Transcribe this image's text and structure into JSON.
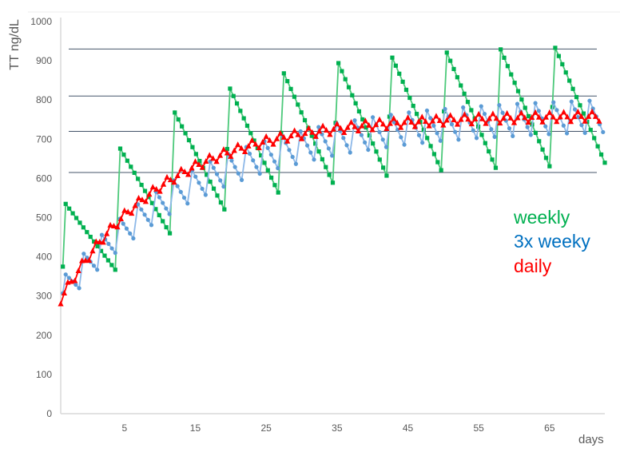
{
  "chart_data": {
    "type": "line",
    "title": "",
    "xlabel": "days",
    "ylabel": "TT ng/dL",
    "xlim": [
      -4,
      72.8
    ],
    "ylim": [
      0,
      1000
    ],
    "x_ticks": [
      "5",
      "15",
      "25",
      "35",
      "45",
      "55",
      "65"
    ],
    "x_tick_values": [
      5,
      15,
      25,
      35,
      45,
      55,
      65
    ],
    "y_ticks": [
      "0",
      "100",
      "200",
      "300",
      "400",
      "500",
      "600",
      "700",
      "800",
      "900",
      "1000"
    ],
    "y_tick_values": [
      0,
      100,
      200,
      300,
      400,
      500,
      600,
      700,
      800,
      900,
      1000
    ],
    "grid": false,
    "reference_lines": [
      930,
      810,
      720,
      615
    ],
    "reference_line_color": "#44546a",
    "legend_placement": "right",
    "series": [
      {
        "name": "weekly",
        "color": "#00b050",
        "line_color": "#4cc97a",
        "marker": "square",
        "points": [
          [
            -3.7,
            375
          ],
          [
            -3.3,
            535
          ],
          [
            3.7,
            367
          ],
          [
            4.4,
            676
          ],
          [
            11.4,
            460
          ],
          [
            12.1,
            768
          ],
          [
            19.1,
            521
          ],
          [
            19.9,
            829
          ],
          [
            26.7,
            564
          ],
          [
            27.5,
            868
          ],
          [
            34.4,
            589
          ],
          [
            35.2,
            894
          ],
          [
            42.0,
            607
          ],
          [
            42.8,
            908
          ],
          [
            49.7,
            621
          ],
          [
            50.5,
            921
          ],
          [
            57.4,
            627
          ],
          [
            58.1,
            929
          ],
          [
            65.0,
            631
          ],
          [
            65.8,
            933
          ],
          [
            72.8,
            640
          ]
        ]
      },
      {
        "name": "3x weeky",
        "color": "#0070c0",
        "line_color": "#8db8e8",
        "marker_color": "#5b9bd5",
        "marker": "circle",
        "points": [
          [
            -3.7,
            307
          ],
          [
            -3.3,
            355
          ],
          [
            -1.4,
            320
          ],
          [
            -0.75,
            408
          ],
          [
            1.15,
            367
          ],
          [
            1.8,
            456
          ],
          [
            3.7,
            410
          ],
          [
            4.35,
            497
          ],
          [
            6.25,
            447
          ],
          [
            6.9,
            534
          ],
          [
            8.8,
            481
          ],
          [
            9.45,
            566
          ],
          [
            11.35,
            509
          ],
          [
            12.0,
            595
          ],
          [
            13.9,
            536
          ],
          [
            14.55,
            620
          ],
          [
            16.45,
            558
          ],
          [
            17.1,
            643
          ],
          [
            19.0,
            579
          ],
          [
            19.65,
            662
          ],
          [
            21.55,
            596
          ],
          [
            22.2,
            680
          ],
          [
            24.1,
            612
          ],
          [
            24.75,
            695
          ],
          [
            26.65,
            626
          ],
          [
            27.3,
            708
          ],
          [
            29.2,
            637
          ],
          [
            29.85,
            720
          ],
          [
            31.75,
            648
          ],
          [
            32.4,
            731
          ],
          [
            34.3,
            658
          ],
          [
            34.95,
            740
          ],
          [
            36.85,
            666
          ],
          [
            37.5,
            748
          ],
          [
            39.4,
            673
          ],
          [
            40.05,
            756
          ],
          [
            41.95,
            680
          ],
          [
            42.6,
            762
          ],
          [
            44.5,
            686
          ],
          [
            45.15,
            768
          ],
          [
            47.05,
            691
          ],
          [
            47.7,
            773
          ],
          [
            49.6,
            696
          ],
          [
            50.25,
            777
          ],
          [
            52.15,
            699
          ],
          [
            52.8,
            781
          ],
          [
            54.7,
            703
          ],
          [
            55.35,
            784
          ],
          [
            57.25,
            706
          ],
          [
            57.9,
            787
          ],
          [
            59.8,
            708
          ],
          [
            60.45,
            790
          ],
          [
            62.35,
            711
          ],
          [
            63.0,
            792
          ],
          [
            64.9,
            713
          ],
          [
            65.55,
            794
          ],
          [
            67.45,
            715
          ],
          [
            68.1,
            796
          ],
          [
            70.0,
            716
          ],
          [
            70.65,
            798
          ],
          [
            72.55,
            718
          ]
        ]
      },
      {
        "name": "daily",
        "color": "#ff0000",
        "line_color": "#ff0000",
        "marker": "triangle",
        "x": [
          -4,
          -3,
          -2,
          -1,
          0,
          1,
          2,
          3,
          4,
          5,
          6,
          7,
          8,
          9,
          10,
          11,
          12,
          13,
          14,
          15,
          16,
          17,
          18,
          19,
          20,
          21,
          22,
          23,
          24,
          25,
          26,
          27,
          28,
          29,
          30,
          31,
          32,
          33,
          34,
          35,
          36,
          37,
          38,
          39,
          40,
          41,
          42,
          43,
          44,
          45,
          46,
          47,
          48,
          49,
          50,
          51,
          52,
          53,
          54,
          55,
          56,
          57,
          58,
          59,
          60,
          61,
          62,
          63,
          64,
          65,
          66,
          67,
          68,
          69,
          70,
          71,
          72
        ],
        "values": [
          280,
          335,
          339,
          390,
          391,
          439,
          437,
          481,
          476,
          518,
          511,
          550,
          541,
          578,
          567,
          603,
          590,
          624,
          610,
          643,
          628,
          659,
          643,
          674,
          656,
          686,
          668,
          697,
          678,
          707,
          687,
          715,
          695,
          722,
          701,
          728,
          707,
          734,
          712,
          739,
          717,
          743,
          721,
          747,
          724,
          750,
          727,
          753,
          730,
          755,
          732,
          757,
          734,
          759,
          736,
          761,
          738,
          763,
          739,
          764,
          740,
          765,
          741,
          766,
          742,
          767,
          743,
          768,
          744,
          768,
          745,
          769,
          745,
          770,
          746,
          770,
          746
        ]
      }
    ]
  }
}
